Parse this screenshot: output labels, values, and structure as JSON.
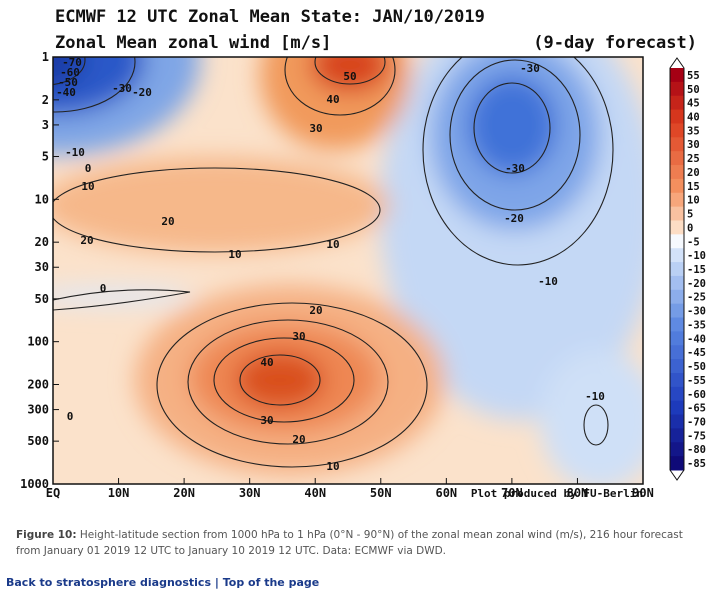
{
  "figure": {
    "title": "ECMWF 12 UTC Zonal Mean State: JAN/10/2019",
    "subtitle": "Zonal Mean zonal wind [m/s]",
    "forecast": "(9-day forecast)",
    "credit": "Plot produced by FU-Berlin",
    "x_ticks": [
      "EQ",
      "10N",
      "20N",
      "30N",
      "40N",
      "50N",
      "60N",
      "70N",
      "80N",
      "90N"
    ],
    "y_ticks": [
      "1",
      "2",
      "3",
      "5",
      "10",
      "20",
      "30",
      "50",
      "100",
      "200",
      "300",
      "500",
      "1000"
    ],
    "colorbar": [
      "55",
      "50",
      "45",
      "40",
      "35",
      "30",
      "25",
      "20",
      "15",
      "10",
      "5",
      "0",
      "-5",
      "-10",
      "-15",
      "-20",
      "-25",
      "-30",
      "-35",
      "-40",
      "-45",
      "-50",
      "-55",
      "-60",
      "-65",
      "-70",
      "-75",
      "-80",
      "-85"
    ],
    "contour_labels": [
      "-70",
      "-60",
      "-50",
      "-40",
      "-30",
      "-20",
      "-10",
      "0",
      "10",
      "50",
      "40",
      "30",
      "20",
      "10",
      "20",
      "10",
      "0",
      "20",
      "30",
      "40",
      "30",
      "20",
      "10",
      "0",
      "-30",
      "-30",
      "-20",
      "-10",
      "-10"
    ]
  },
  "caption": {
    "label": "Figure 10:",
    "text": "Height-latitude section from 1000 hPa to 1 hPa (0°N - 90°N) of the zonal mean zonal wind (m/s), 216 hour forecast from January 01 2019 12 UTC to January 10 2019 12 UTC. Data: ECMWF via DWD."
  },
  "links": {
    "back": "Back to stratosphere diagnostics",
    "separator": "|",
    "top": "Top of the page"
  }
}
